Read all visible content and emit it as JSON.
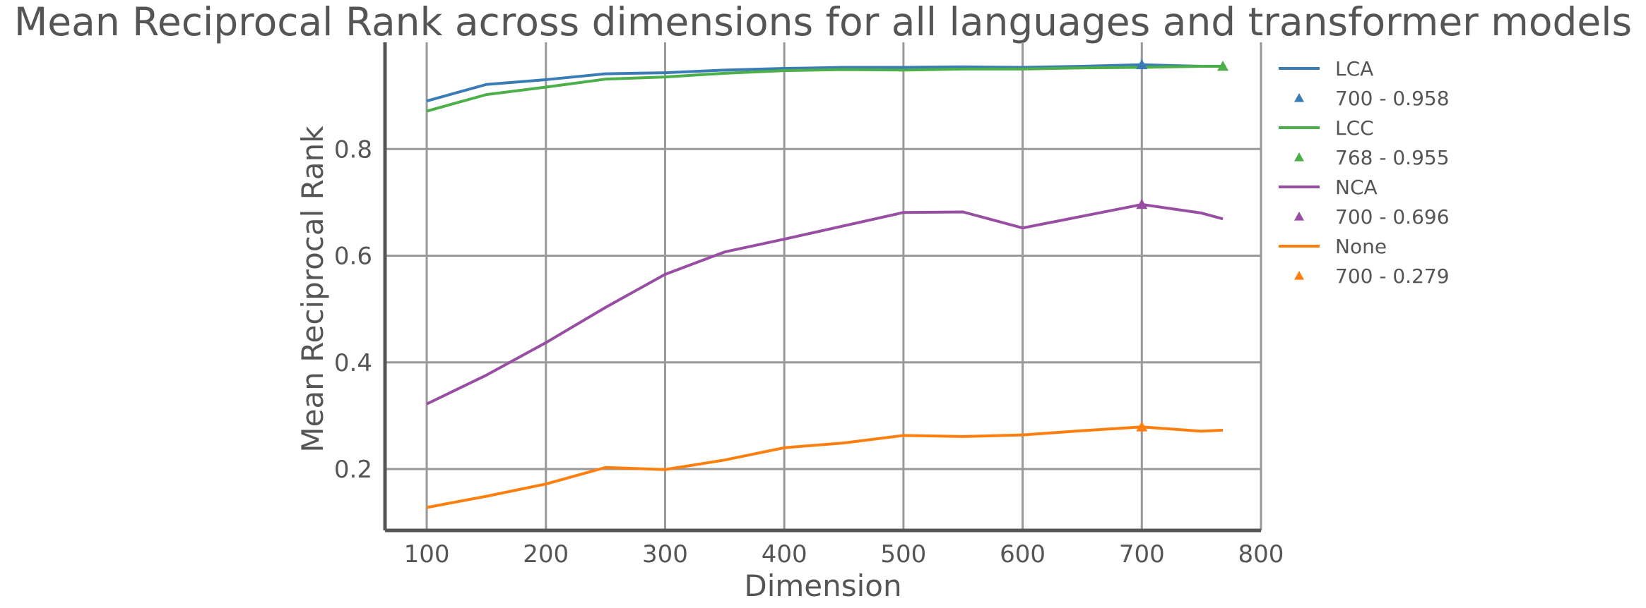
{
  "chart_data": {
    "type": "line",
    "title": "Mean Reciprocal Rank across dimensions for all languages and transformer models",
    "xlabel": "Dimension",
    "ylabel": "Mean Reciprocal Rank",
    "xlim": [
      65,
      800
    ],
    "ylim": [
      0.085,
      1.0
    ],
    "xticks": [
      "100",
      "200",
      "300",
      "400",
      "500",
      "600",
      "700",
      "800"
    ],
    "yticks": [
      "0.2",
      "0.4",
      "0.6",
      "0.8"
    ],
    "grid": true,
    "legend_position": "right-outside-top",
    "x": [
      100,
      150,
      200,
      250,
      300,
      350,
      400,
      450,
      500,
      550,
      600,
      650,
      700,
      750,
      768
    ],
    "series": [
      {
        "name": "LCA",
        "color": "#3a7cb5",
        "values": [
          0.89,
          0.921,
          0.93,
          0.941,
          0.943,
          0.948,
          0.951,
          0.953,
          0.953,
          0.954,
          0.953,
          0.955,
          0.958,
          0.955,
          0.955
        ],
        "best": {
          "x": 700,
          "y": 0.958,
          "label": "700 - 0.958"
        }
      },
      {
        "name": "LCC",
        "color": "#4daf4a",
        "values": [
          0.871,
          0.902,
          0.916,
          0.931,
          0.935,
          0.942,
          0.947,
          0.949,
          0.948,
          0.95,
          0.95,
          0.952,
          0.953,
          0.955,
          0.955
        ],
        "best": {
          "x": 768,
          "y": 0.955,
          "label": "768 - 0.955"
        }
      },
      {
        "name": "NCA",
        "color": "#984ea3",
        "values": [
          0.322,
          0.376,
          0.437,
          0.503,
          0.565,
          0.607,
          0.631,
          0.656,
          0.681,
          0.682,
          0.652,
          0.674,
          0.696,
          0.68,
          0.669
        ],
        "best": {
          "x": 700,
          "y": 0.696,
          "label": "700 - 0.696"
        }
      },
      {
        "name": "None",
        "color": "#ff7f0e",
        "values": [
          0.128,
          0.149,
          0.172,
          0.203,
          0.199,
          0.217,
          0.24,
          0.249,
          0.263,
          0.261,
          0.264,
          0.272,
          0.279,
          0.271,
          0.273
        ],
        "best": {
          "x": 700,
          "y": 0.279,
          "label": "700 - 0.279"
        }
      }
    ]
  }
}
